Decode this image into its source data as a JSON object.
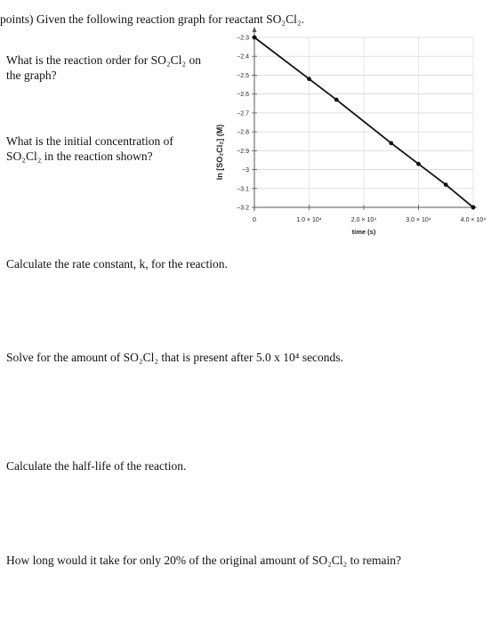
{
  "header": {
    "text": "points) Given the following reaction graph for reactant SO₂Cl₂."
  },
  "questions": [
    {
      "text": "What is the reaction order for SO₂Cl₂ on the graph?"
    },
    {
      "text": "What is the initial concentration of SO₂Cl₂ in the reaction shown?"
    },
    {
      "text": "Calculate the rate constant, k, for the reaction."
    },
    {
      "text": "Solve for the amount of SO₂Cl₂ that is present after 5.0 x 10⁴ seconds."
    },
    {
      "text": "Calculate the half-life of the reaction."
    },
    {
      "text": "How long would it take for only 20% of the original amount of SO₂Cl₂ to remain?"
    }
  ],
  "chart_data": {
    "type": "line",
    "xlabel": "time (s)",
    "ylabel": "ln [SO₂Cl₂] (M)",
    "xlim": [
      0,
      40000
    ],
    "ylim": [
      -3.2,
      -2.3
    ],
    "x_ticks": [
      0,
      10000,
      20000,
      30000,
      40000
    ],
    "x_tick_labels": [
      "0",
      "1.0 × 10⁴",
      "2.0 × 10⁴",
      "3.0 × 10⁴",
      "4.0 × 10⁴"
    ],
    "y_ticks": [
      -2.3,
      -2.4,
      -2.5,
      -2.6,
      -2.7,
      -2.8,
      -2.9,
      -3,
      -3.1,
      -3.2
    ],
    "y_tick_labels": [
      "−2.3",
      "−2.4",
      "−2.5",
      "−2.6",
      "−2.7",
      "−2.8",
      "−2.9",
      "−3",
      "−3.1",
      "−3.2"
    ],
    "grid": true,
    "series": [
      {
        "x": [
          0,
          10000,
          15000,
          25000,
          30000,
          35000,
          40000
        ],
        "y": [
          -2.3,
          -2.52,
          -2.63,
          -2.86,
          -2.97,
          -3.08,
          -3.2
        ]
      }
    ],
    "line_color": "#111111"
  }
}
